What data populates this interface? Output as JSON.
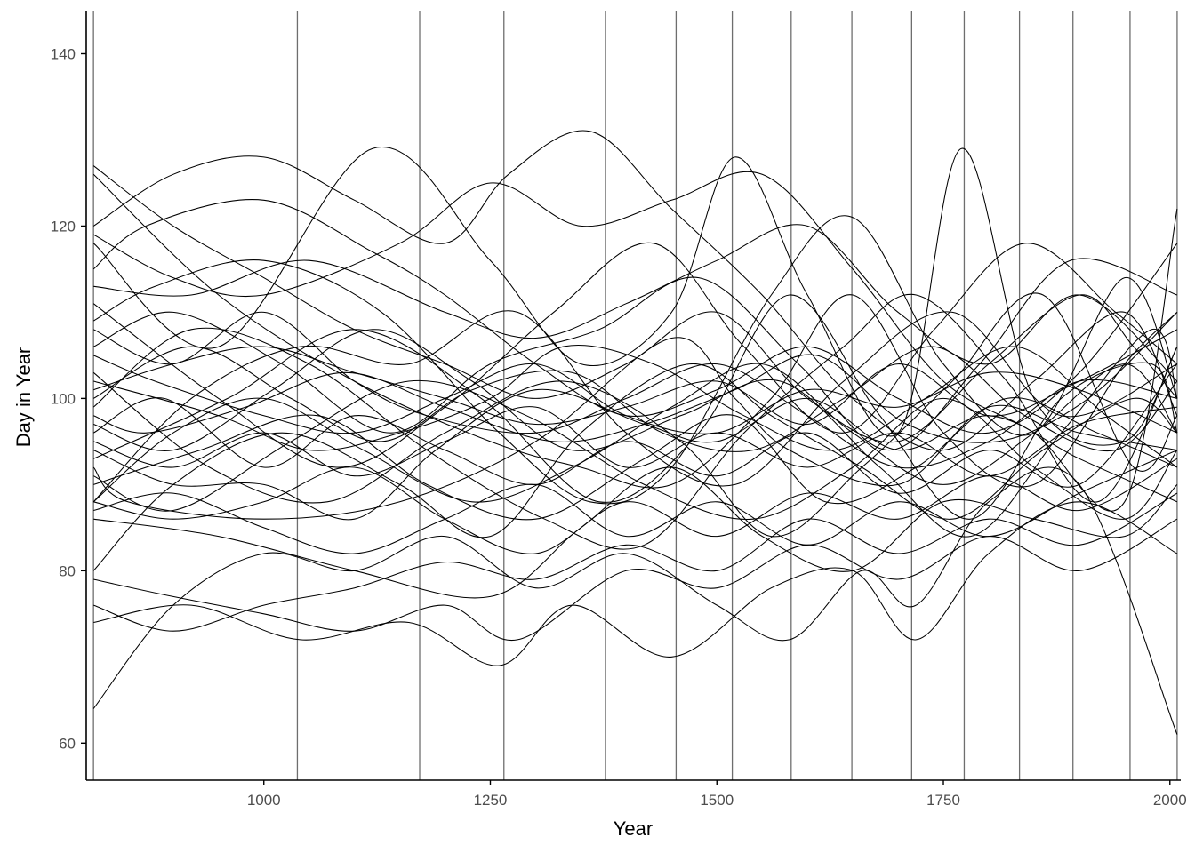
{
  "chart_data": {
    "type": "line",
    "xlabel": "Year",
    "ylabel": "Day in Year",
    "xlim": [
      804,
      2012
    ],
    "ylim": [
      55.7,
      145
    ],
    "xticks": [
      1000,
      1250,
      1500,
      1750,
      2000
    ],
    "yticks": [
      60,
      80,
      100,
      120,
      140
    ],
    "xtick_labels": [
      "1000",
      "1250",
      "1500",
      "1750",
      "2000"
    ],
    "ytick_labels": [
      "60",
      "80",
      "100",
      "120",
      "140"
    ],
    "vertical_lines_x": [
      812,
      1037,
      1172,
      1265,
      1377,
      1455,
      1517,
      1582,
      1649,
      1715,
      1773,
      1834,
      1893,
      1956,
      2008
    ],
    "grid": false,
    "legend": "none",
    "line_color": "#000000",
    "vline_color": "#6e6e6e",
    "series": [
      {
        "x": [
          812,
          900,
          1000,
          1100,
          1200,
          1300,
          1400,
          1500,
          1600,
          1700,
          1800,
          1900,
          1960,
          2008
        ],
        "values": [
          127,
          120,
          114,
          108,
          104,
          100,
          104,
          110,
          100,
          95,
          104,
          112,
          106,
          100
        ]
      },
      {
        "x": [
          812,
          950,
          1100,
          1250,
          1350,
          1450,
          1560,
          1650,
          1750,
          1850,
          1950,
          2008
        ],
        "values": [
          126,
          112,
          102,
          95,
          92,
          90,
          100,
          112,
          96,
          90,
          104,
          110
        ]
      },
      {
        "x": [
          812,
          870,
          1000,
          1120,
          1200,
          1300,
          1400,
          1500,
          1600,
          1700,
          1800,
          1900,
          2008
        ],
        "values": [
          115,
          120,
          123,
          117,
          112,
          104,
          98,
          101,
          106,
          100,
          96,
          103,
          118
        ]
      },
      {
        "x": [
          812,
          900,
          1000,
          1100,
          1200,
          1270,
          1360,
          1450,
          1550,
          1650,
          1750,
          1850,
          1950,
          2008
        ],
        "values": [
          120,
          126,
          128,
          123,
          118,
          126,
          131,
          122,
          112,
          100,
          94,
          102,
          110,
          98
        ]
      },
      {
        "x": [
          812,
          950,
          1120,
          1250,
          1350,
          1450,
          1520,
          1600,
          1700,
          1770,
          1850,
          1950,
          2008
        ],
        "values": [
          118,
          106,
          129,
          116,
          104,
          110,
          128,
          112,
          96,
          129,
          100,
          95,
          106
        ]
      },
      {
        "x": [
          812,
          900,
          1000,
          1150,
          1250,
          1350,
          1450,
          1550,
          1650,
          1750,
          1850,
          1950,
          2008
        ],
        "values": [
          119,
          114,
          112,
          118,
          125,
          120,
          123,
          126,
          115,
          102,
          96,
          88,
          122
        ]
      },
      {
        "x": [
          812,
          920,
          1050,
          1200,
          1300,
          1400,
          1500,
          1600,
          1700,
          1800,
          1900,
          2008
        ],
        "values": [
          113,
          112,
          116,
          110,
          107,
          111,
          116,
          120,
          110,
          104,
          112,
          102
        ]
      },
      {
        "x": [
          812,
          900,
          1000,
          1100,
          1180,
          1300,
          1400,
          1500,
          1600,
          1700,
          1800,
          1900,
          2008
        ],
        "values": [
          108,
          104,
          110,
          102,
          98,
          96,
          100,
          104,
          98,
          92,
          95,
          102,
          100
        ]
      },
      {
        "x": [
          812,
          880,
          1000,
          1100,
          1200,
          1300,
          1400,
          1500,
          1600,
          1700,
          1800,
          1900,
          2008
        ],
        "values": [
          105,
          102,
          98,
          96,
          100,
          104,
          98,
          96,
          101,
          99,
          103,
          101,
          96
        ]
      },
      {
        "x": [
          812,
          950,
          1050,
          1150,
          1250,
          1330,
          1430,
          1530,
          1630,
          1730,
          1830,
          1930,
          2008
        ],
        "values": [
          102,
          98,
          94,
          96,
          100,
          106,
          104,
          98,
          94,
          100,
          106,
          98,
          92
        ]
      },
      {
        "x": [
          812,
          900,
          1000,
          1100,
          1200,
          1300,
          1400,
          1500,
          1600,
          1700,
          1800,
          1900,
          2008
        ],
        "values": [
          101,
          104,
          106,
          103,
          100,
          97,
          99,
          102,
          97,
          104,
          98,
          102,
          108
        ]
      },
      {
        "x": [
          812,
          870,
          980,
          1090,
          1200,
          1320,
          1420,
          1520,
          1610,
          1710,
          1810,
          1910,
          2008
        ],
        "values": [
          98,
          96,
          99,
          103,
          99,
          95,
          97,
          101,
          105,
          97,
          95,
          100,
          110
        ]
      },
      {
        "x": [
          812,
          920,
          1030,
          1130,
          1230,
          1340,
          1440,
          1540,
          1640,
          1740,
          1840,
          1940,
          2008
        ],
        "values": [
          100,
          106,
          100,
          95,
          101,
          103,
          96,
          94,
          100,
          106,
          98,
          94,
          102
        ]
      },
      {
        "x": [
          812,
          890,
          1000,
          1100,
          1200,
          1300,
          1400,
          1500,
          1600,
          1700,
          1800,
          1900,
          2008
        ],
        "values": [
          96,
          100,
          92,
          98,
          94,
          90,
          95,
          91,
          96,
          89,
          94,
          90,
          104
        ]
      },
      {
        "x": [
          812,
          900,
          1000,
          1100,
          1200,
          1300,
          1400,
          1500,
          1600,
          1700,
          1800,
          1900,
          2008
        ],
        "values": [
          95,
          92,
          96,
          91,
          95,
          99,
          92,
          96,
          92,
          96,
          91,
          97,
          99
        ]
      },
      {
        "x": [
          812,
          900,
          1000,
          1100,
          1190,
          1300,
          1420,
          1500,
          1600,
          1700,
          1800,
          1900,
          2008
        ],
        "values": [
          94,
          90,
          90,
          86,
          94,
          101,
          97,
          95,
          100,
          94,
          98,
          93,
          88
        ]
      },
      {
        "x": [
          812,
          850,
          1000,
          1150,
          1300,
          1450,
          1520,
          1580,
          1700,
          1800,
          1900,
          2008
        ],
        "values": [
          92,
          88,
          86,
          88,
          95,
          107,
          100,
          94,
          90,
          99,
          96,
          94
        ]
      },
      {
        "x": [
          812,
          930,
          1060,
          1180,
          1300,
          1420,
          1520,
          1620,
          1720,
          1820,
          1920,
          2008
        ],
        "values": [
          90,
          94,
          98,
          90,
          86,
          93,
          98,
          88,
          92,
          100,
          96,
          92
        ]
      },
      {
        "x": [
          812,
          900,
          1000,
          1110,
          1230,
          1340,
          1450,
          1550,
          1650,
          1750,
          1850,
          1950,
          2008
        ],
        "values": [
          88,
          96,
          100,
          94,
          88,
          92,
          99,
          104,
          96,
          90,
          96,
          104,
          96
        ]
      },
      {
        "x": [
          812,
          920,
          1040,
          1160,
          1280,
          1400,
          1520,
          1640,
          1760,
          1880,
          2008
        ],
        "values": [
          88,
          100,
          106,
          104,
          110,
          96,
          90,
          102,
          110,
          98,
          104
        ]
      },
      {
        "x": [
          812,
          900,
          1000,
          1100,
          1200,
          1300,
          1400,
          1500,
          1600,
          1700,
          1800,
          1900,
          2008
        ],
        "values": [
          88,
          86,
          88,
          92,
          86,
          82,
          88,
          84,
          89,
          86,
          91,
          87,
          93
        ]
      },
      {
        "x": [
          812,
          900,
          1000,
          1100,
          1200,
          1300,
          1400,
          1500,
          1600,
          1700,
          1800,
          1900,
          2008
        ],
        "values": [
          87,
          89,
          85,
          82,
          86,
          90,
          84,
          88,
          83,
          88,
          84,
          89,
          94
        ]
      },
      {
        "x": [
          812,
          950,
          1100,
          1250,
          1350,
          1450,
          1550,
          1650,
          1750,
          1850,
          1950,
          2008
        ],
        "values": [
          86,
          84,
          80,
          77,
          85,
          92,
          84,
          80,
          88,
          86,
          84,
          90
        ]
      },
      {
        "x": [
          812,
          900,
          1020,
          1150,
          1250,
          1350,
          1470,
          1560,
          1660,
          1760,
          1860,
          1960,
          2008
        ],
        "values": [
          80,
          90,
          96,
          90,
          84,
          96,
          104,
          98,
          92,
          86,
          94,
          100,
          96
        ]
      },
      {
        "x": [
          812,
          900,
          1000,
          1100,
          1200,
          1280,
          1400,
          1500,
          1600,
          1700,
          1800,
          1900,
          2008
        ],
        "values": [
          79,
          77,
          75,
          73,
          76,
          72,
          80,
          78,
          83,
          79,
          84,
          80,
          86
        ]
      },
      {
        "x": [
          812,
          900,
          1000,
          1100,
          1200,
          1300,
          1400,
          1500,
          1600,
          1700,
          1800,
          1900,
          2008
        ],
        "values": [
          76,
          73,
          76,
          78,
          81,
          79,
          83,
          80,
          86,
          82,
          86,
          83,
          89
        ]
      },
      {
        "x": [
          812,
          920,
          1040,
          1160,
          1260,
          1340,
          1450,
          1560,
          1650,
          1720,
          1800,
          1900,
          2008
        ],
        "values": [
          74,
          76,
          72,
          74,
          69,
          76,
          70,
          78,
          80,
          72,
          82,
          88,
          82
        ]
      },
      {
        "x": [
          812,
          900,
          1000,
          1100,
          1200,
          1300,
          1400,
          1500,
          1580,
          1660,
          1720,
          1800,
          1900,
          2008
        ],
        "values": [
          64,
          76,
          82,
          80,
          84,
          78,
          82,
          76,
          72,
          80,
          76,
          88,
          90,
          61
        ]
      },
      {
        "x": [
          812,
          880,
          1000,
          1130,
          1260,
          1360,
          1450,
          1560,
          1650,
          1750,
          1850,
          1950,
          2008
        ],
        "values": [
          109,
          113,
          116,
          110,
          96,
          88,
          92,
          112,
          121,
          104,
          96,
          114,
          100
        ]
      },
      {
        "x": [
          812,
          950,
          1080,
          1200,
          1320,
          1430,
          1530,
          1640,
          1740,
          1840,
          1940,
          2008
        ],
        "values": [
          111,
          100,
          92,
          99,
          110,
          118,
          106,
          96,
          108,
          118,
          110,
          104
        ]
      },
      {
        "x": [
          812,
          900,
          1020,
          1140,
          1250,
          1370,
          1480,
          1590,
          1690,
          1790,
          1890,
          2008
        ],
        "values": [
          106,
          110,
          104,
          96,
          104,
          108,
          114,
          104,
          94,
          104,
          116,
          112
        ]
      },
      {
        "x": [
          812,
          940,
          1070,
          1200,
          1330,
          1460,
          1560,
          1660,
          1760,
          1860,
          1960,
          2008
        ],
        "values": [
          103,
          92,
          88,
          96,
          102,
          95,
          84,
          92,
          102,
          112,
          92,
          98
        ]
      },
      {
        "x": [
          812,
          920,
          1050,
          1180,
          1310,
          1420,
          1530,
          1640,
          1720,
          1820,
          1920,
          2008
        ],
        "values": [
          99,
          108,
          104,
          94,
          86,
          83,
          96,
          106,
          112,
          102,
          88,
          106
        ]
      },
      {
        "x": [
          812,
          900,
          1010,
          1120,
          1230,
          1340,
          1460,
          1570,
          1680,
          1780,
          1880,
          1980,
          2008
        ],
        "values": [
          97,
          94,
          101,
          108,
          102,
          94,
          98,
          102,
          92,
          84,
          96,
          108,
          100
        ]
      },
      {
        "x": [
          812,
          960,
          1100,
          1240,
          1370,
          1480,
          1580,
          1680,
          1780,
          1880,
          1980,
          2008
        ],
        "values": [
          93,
          100,
          108,
          100,
          88,
          96,
          112,
          98,
          86,
          100,
          104,
          96
        ]
      },
      {
        "x": [
          812,
          900,
          1030,
          1160,
          1290,
          1420,
          1540,
          1650,
          1750,
          1850,
          1950,
          2008
        ],
        "values": [
          91,
          87,
          95,
          102,
          98,
          90,
          86,
          92,
          100,
          92,
          86,
          94
        ]
      }
    ]
  }
}
